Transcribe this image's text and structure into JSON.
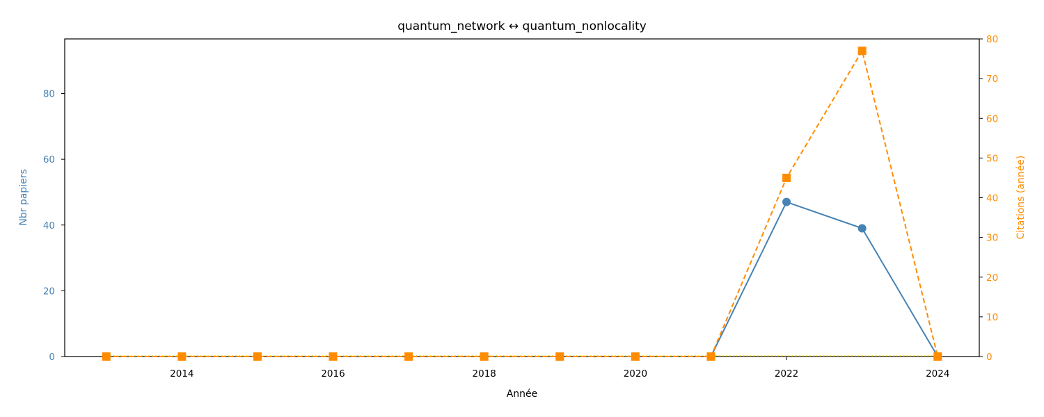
{
  "chart_data": {
    "type": "line",
    "title": "quantum_network  ↔  quantum_nonlocality",
    "xlabel": "Année",
    "ylabel_left": "Nbr papiers",
    "ylabel_right": "Citations (année)",
    "x": [
      2013,
      2014,
      2015,
      2016,
      2017,
      2018,
      2019,
      2020,
      2021,
      2022,
      2023,
      2024
    ],
    "xlim": [
      2012.45,
      2024.55
    ],
    "x_ticks": [
      2014,
      2016,
      2018,
      2020,
      2022,
      2024
    ],
    "ylim_left": [
      0,
      96.6
    ],
    "y_ticks_left": [
      0,
      20,
      40,
      60,
      80
    ],
    "ylim_right": [
      0,
      80
    ],
    "y_ticks_right": [
      0,
      10,
      20,
      30,
      40,
      50,
      60,
      70,
      80
    ],
    "grid": false,
    "series": [
      {
        "axis": "left",
        "marker": "circle",
        "linestyle": "solid",
        "color": "#4682b4",
        "values": [
          null,
          null,
          null,
          null,
          null,
          null,
          null,
          null,
          0,
          47,
          39,
          0
        ]
      },
      {
        "axis": "right",
        "marker": "square",
        "linestyle": "dashed",
        "color": "#ff8c00",
        "values": [
          0,
          0,
          0,
          0,
          0,
          0,
          0,
          0,
          0,
          45,
          77,
          0
        ]
      }
    ],
    "baseline_color": "#ffd700"
  }
}
